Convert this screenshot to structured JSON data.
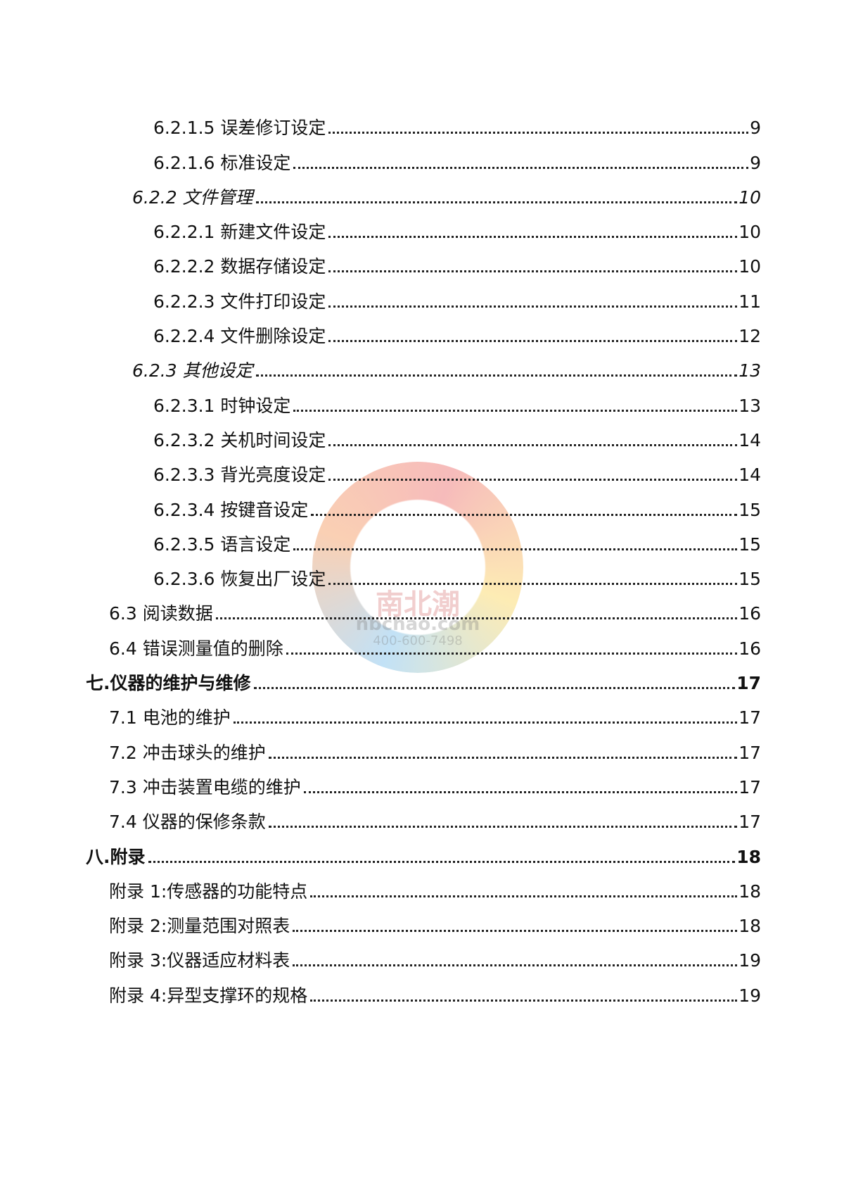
{
  "watermark": {
    "logo_text": "南北潮",
    "site": "nbchao.com",
    "phone": "400-600-7498"
  },
  "toc": [
    {
      "level": 4,
      "label": "6.2.1.5 误差修订设定",
      "page": "9"
    },
    {
      "level": 4,
      "label": "6.2.1.6 标准设定",
      "page": "9"
    },
    {
      "level": 3,
      "label": "6.2.2  文件管理",
      "page": "10"
    },
    {
      "level": 4,
      "label": "6.2.2.1  新建文件设定",
      "page": "10"
    },
    {
      "level": 4,
      "label": "6.2.2.2  数据存储设定",
      "page": "10"
    },
    {
      "level": 4,
      "label": "6.2.2.3 文件打印设定",
      "page": "11"
    },
    {
      "level": 4,
      "label": "6.2.2.4 文件删除设定",
      "page": "12"
    },
    {
      "level": 3,
      "label": "6.2.3 其他设定",
      "page": "13"
    },
    {
      "level": 4,
      "label": "6.2.3.1  时钟设定",
      "page": "13"
    },
    {
      "level": 4,
      "label": "6.2.3.2 关机时间设定",
      "page": "14"
    },
    {
      "level": 4,
      "label": "6.2.3.3 背光亮度设定",
      "page": "14"
    },
    {
      "level": 4,
      "label": "6.2.3.4 按键音设定",
      "page": "15"
    },
    {
      "level": 4,
      "label": "6.2.3.5 语言设定",
      "page": "15"
    },
    {
      "level": 4,
      "label": "6.2.3.6 恢复出厂设定",
      "page": "15"
    },
    {
      "level": 2,
      "label": "6.3 阅读数据",
      "page": "16"
    },
    {
      "level": 2,
      "label": "6.4  错误测量值的删除",
      "page": "16"
    },
    {
      "level": 1,
      "label": "七.仪器的维护与维修",
      "page": "17"
    },
    {
      "level": 2,
      "label": "7.1  电池的维护",
      "page": "17"
    },
    {
      "level": 2,
      "label": "7.2  冲击球头的维护",
      "page": "17"
    },
    {
      "level": 2,
      "label": "7.3  冲击装置电缆的维护",
      "page": "17"
    },
    {
      "level": 2,
      "label": "7.4  仪器的保修条款",
      "page": "17"
    },
    {
      "level": 1,
      "label": "八.附录",
      "page": "18"
    },
    {
      "level": 2,
      "label": "附录 1:传感器的功能特点",
      "page": "18"
    },
    {
      "level": 2,
      "label": "附录 2:测量范围对照表",
      "page": "18"
    },
    {
      "level": 2,
      "label": "附录 3:仪器适应材料表",
      "page": "19"
    },
    {
      "level": 2,
      "label": "附录 4:异型支撑环的规格",
      "page": "19"
    }
  ]
}
